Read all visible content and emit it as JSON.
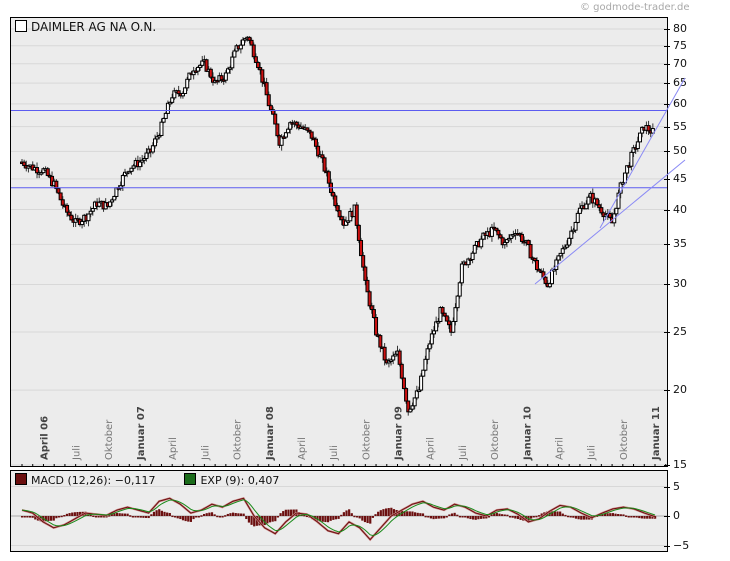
{
  "copyright": "© godmode-trader.de",
  "chart_data": [
    {
      "type": "candlestick",
      "title": "DAIMLER AG NA O.N.",
      "legend": [
        {
          "label": "DAIMLER AG NA O.N.",
          "color": "#ffffff"
        }
      ],
      "yscale": "log",
      "ylim": [
        15,
        82
      ],
      "yticks": [
        15,
        20,
        25,
        30,
        35,
        40,
        45,
        50,
        55,
        60,
        65,
        70,
        75,
        80
      ],
      "xticks": [
        {
          "label": "April 06",
          "bold": true
        },
        {
          "label": "Juli",
          "bold": false
        },
        {
          "label": "Oktober",
          "bold": false
        },
        {
          "label": "Januar 07",
          "bold": true
        },
        {
          "label": "April",
          "bold": false
        },
        {
          "label": "Juli",
          "bold": false
        },
        {
          "label": "Oktober",
          "bold": false
        },
        {
          "label": "Januar 08",
          "bold": true
        },
        {
          "label": "April",
          "bold": false
        },
        {
          "label": "Juli",
          "bold": false
        },
        {
          "label": "Oktober",
          "bold": false
        },
        {
          "label": "Januar 09",
          "bold": true
        },
        {
          "label": "April",
          "bold": false
        },
        {
          "label": "Juli",
          "bold": false
        },
        {
          "label": "Oktober",
          "bold": false
        },
        {
          "label": "Januar 10",
          "bold": true
        },
        {
          "label": "April",
          "bold": false
        },
        {
          "label": "Juli",
          "bold": false
        },
        {
          "label": "Oktober",
          "bold": false
        },
        {
          "label": "Januar 11",
          "bold": true
        }
      ],
      "price_path": {
        "description": "Approximate closing-price path (monthly-ish samples) read from the chart",
        "x": [
          "2006-02",
          "2006-03",
          "2006-04",
          "2006-05",
          "2006-06",
          "2006-07",
          "2006-08",
          "2006-09",
          "2006-10",
          "2006-11",
          "2006-12",
          "2007-01",
          "2007-02",
          "2007-03",
          "2007-04",
          "2007-05",
          "2007-06",
          "2007-07",
          "2007-08",
          "2007-09",
          "2007-10",
          "2007-11",
          "2007-12",
          "2008-01",
          "2008-02",
          "2008-03",
          "2008-04",
          "2008-05",
          "2008-06",
          "2008-07",
          "2008-08",
          "2008-09",
          "2008-10",
          "2008-11",
          "2008-12",
          "2009-01",
          "2009-02",
          "2009-03",
          "2009-04",
          "2009-05",
          "2009-06",
          "2009-07",
          "2009-08",
          "2009-09",
          "2009-10",
          "2009-11",
          "2009-12",
          "2010-01",
          "2010-02",
          "2010-03",
          "2010-04",
          "2010-05",
          "2010-06",
          "2010-07",
          "2010-08",
          "2010-09",
          "2010-10",
          "2010-11",
          "2010-12",
          "2011-01"
        ],
        "close": [
          48,
          47,
          46.5,
          44,
          40,
          38,
          39,
          41,
          40.5,
          44,
          47,
          48,
          50,
          55,
          62,
          63,
          69,
          70,
          65,
          67,
          74,
          78,
          70,
          60,
          52,
          56,
          55,
          53,
          48,
          42,
          38,
          40,
          30,
          25,
          22,
          23,
          18.5,
          20,
          24,
          27,
          25,
          32,
          34,
          36,
          37,
          35,
          37,
          35,
          32,
          30,
          33,
          36,
          40,
          42,
          40,
          38,
          45,
          50,
          55,
          53.5
        ]
      },
      "horizontal_lines": [
        {
          "value": 58.5,
          "color": "#5c5cf0"
        },
        {
          "value": 43.5,
          "color": "#5c5cf0"
        }
      ],
      "trendlines": [
        {
          "from": {
            "x": "2010-02",
            "y": 30
          },
          "to": {
            "x": "2011-03",
            "y": 48
          },
          "color": "#8a8af5"
        },
        {
          "from": {
            "x": "2010-08",
            "y": 37
          },
          "to": {
            "x": "2011-03",
            "y": 66
          },
          "color": "#8a8af5"
        }
      ]
    },
    {
      "type": "line",
      "title": "MACD",
      "legend": [
        {
          "label": "MACD (12,26): -0,117",
          "color": "#6b0f0f"
        },
        {
          "label": "EXP (9): 0,407",
          "color": "#1a6b1a"
        }
      ],
      "series": [
        {
          "name": "MACD (12,26)",
          "last": -0.117,
          "color": "#6b0f0f"
        },
        {
          "name": "EXP (9)",
          "last": 0.407,
          "color": "#1a6b1a"
        }
      ],
      "histogram": {
        "name": "MACD - EXP",
        "color": "#6b0f0f"
      },
      "ylim": [
        -6,
        7
      ],
      "yticks": [
        -5,
        0,
        5
      ],
      "macd_path": [
        1,
        0.5,
        -1,
        -2,
        -1.5,
        -0.5,
        0.5,
        0.3,
        0.1,
        1,
        1.5,
        1,
        0.5,
        2.5,
        3,
        2,
        0.5,
        1,
        2,
        1.5,
        2.5,
        3,
        0,
        -2,
        -3,
        -1,
        0.5,
        0.3,
        -1,
        -2.5,
        -3,
        -1,
        -2,
        -4,
        -2,
        0,
        1,
        2,
        2.5,
        1.5,
        1,
        2,
        1.5,
        0.5,
        0,
        1,
        1.2,
        0.3,
        -1,
        -0.5,
        0.8,
        1.8,
        1.5,
        0.5,
        -0.3,
        0.5,
        1.2,
        1.5,
        1.2,
        0.5,
        -0.117
      ]
    }
  ],
  "main": {
    "legend_label": "DAIMLER AG NA O.N."
  },
  "macd": {
    "legend_macd": "MACD (12,26): −0,117",
    "legend_exp": "EXP (9): 0,407"
  },
  "axis_labels": {
    "main_y": [
      "80",
      "75",
      "70",
      "65",
      "60",
      "55",
      "50",
      "45",
      "40",
      "35",
      "30",
      "25",
      "20",
      "15"
    ],
    "macd_y": [
      "5",
      "0",
      "−5"
    ]
  }
}
